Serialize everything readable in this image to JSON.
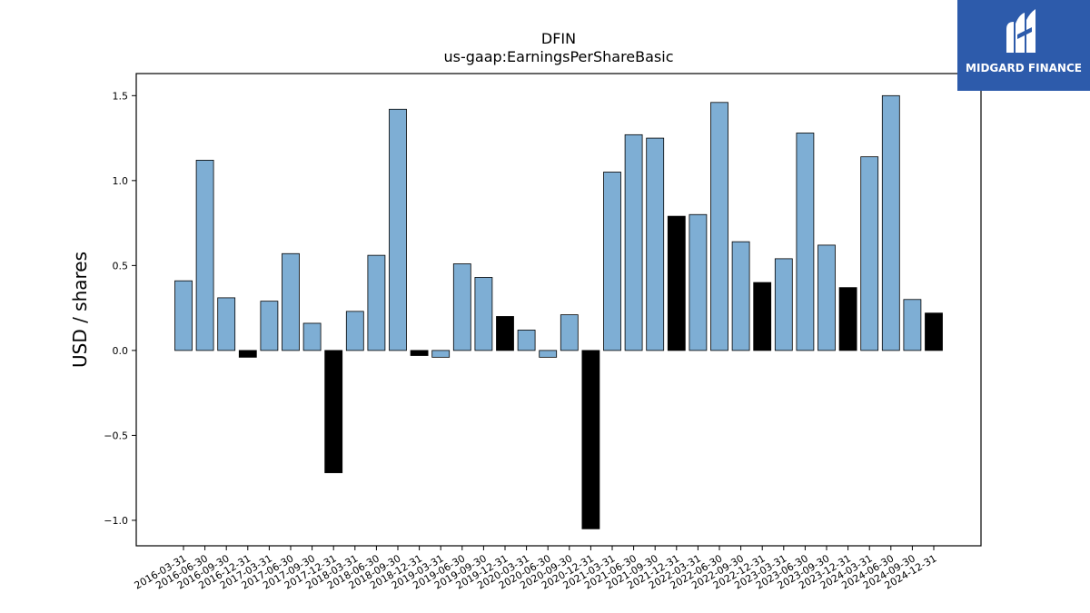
{
  "chart_data": {
    "type": "bar",
    "title": "DFIN",
    "subtitle": "us-gaap:EarningsPerShareBasic",
    "xlabel": "",
    "ylabel": "USD / shares",
    "ylim": [
      -1.15,
      1.63
    ],
    "yticks": [
      -1.0,
      -0.5,
      0.0,
      0.5,
      1.0,
      1.5
    ],
    "ytick_labels": [
      "−1.0",
      "−0.5",
      "0.0",
      "0.5",
      "1.0",
      "1.5"
    ],
    "grid": false,
    "colors": {
      "quarter": "#7eaed4",
      "year_end": "#000000",
      "edge": "#000000"
    },
    "categories": [
      "2016-03-31",
      "2016-06-30",
      "2016-09-30",
      "2016-12-31",
      "2017-03-31",
      "2017-06-30",
      "2017-09-30",
      "2017-12-31",
      "2018-03-31",
      "2018-06-30",
      "2018-09-30",
      "2018-12-31",
      "2019-03-31",
      "2019-06-30",
      "2019-09-30",
      "2019-12-31",
      "2020-03-31",
      "2020-06-30",
      "2020-09-30",
      "2020-12-31",
      "2021-03-31",
      "2021-06-30",
      "2021-09-30",
      "2021-12-31",
      "2022-03-31",
      "2022-06-30",
      "2022-09-30",
      "2022-12-31",
      "2023-03-31",
      "2023-06-30",
      "2023-09-30",
      "2023-12-31",
      "2024-03-31",
      "2024-06-30",
      "2024-09-30",
      "2024-12-31"
    ],
    "values": [
      0.41,
      1.12,
      0.31,
      -0.04,
      0.29,
      0.57,
      0.16,
      -0.72,
      0.23,
      0.56,
      1.42,
      -0.03,
      -0.04,
      0.51,
      0.43,
      0.2,
      0.12,
      -0.04,
      0.21,
      -1.05,
      1.05,
      1.27,
      1.25,
      0.79,
      0.8,
      1.46,
      0.64,
      0.4,
      0.54,
      1.28,
      0.62,
      0.37,
      1.14,
      1.5,
      0.3,
      0.22
    ]
  },
  "logo": {
    "text": "MIDGARD FINANCE",
    "icon": "midgard-logo-icon",
    "bg": "#2d5bab"
  }
}
